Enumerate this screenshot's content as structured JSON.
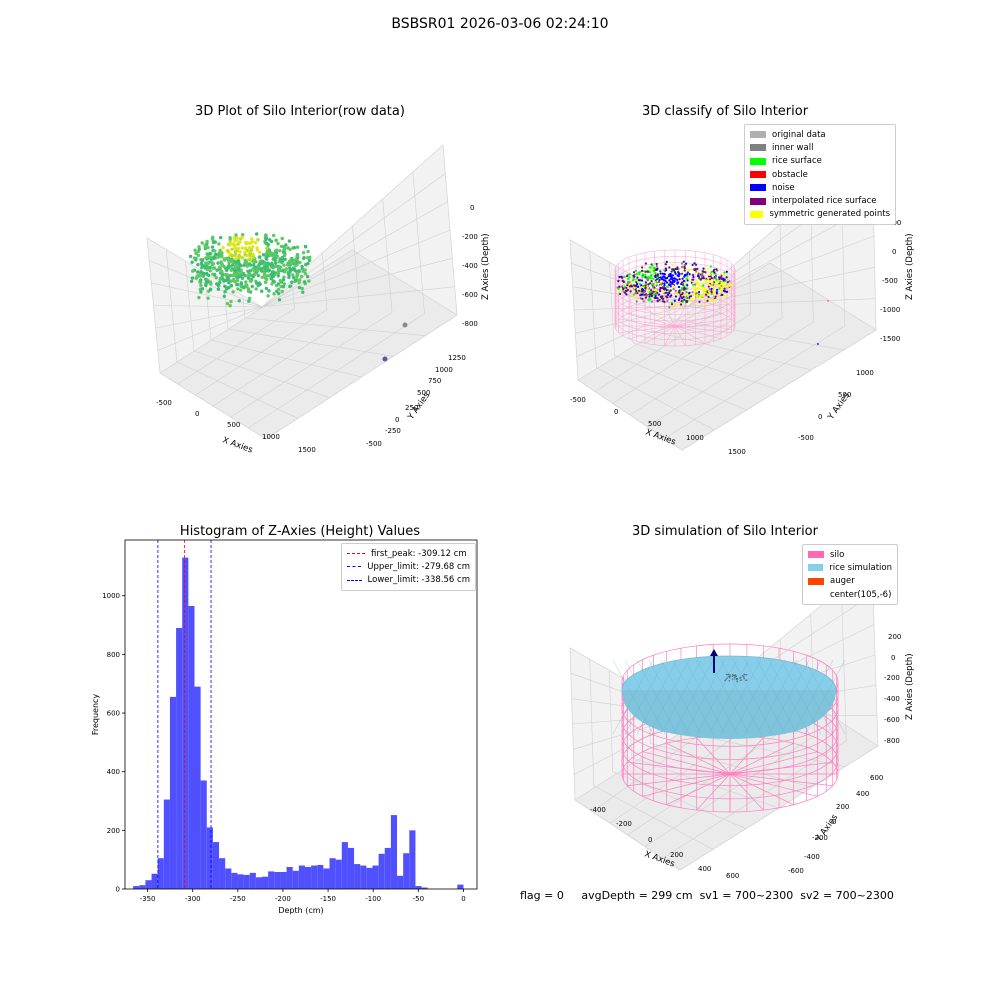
{
  "suptitle": "BSBSR01 2026-03-06 02:24:10",
  "panels": {
    "raw": {
      "title": "3D Plot of Silo Interior(row data)",
      "x_axis_label": "X Axies",
      "y_axis_label": "Y Axies",
      "z_axis_label": "Z Axies (Depth)",
      "x_ticks": [
        "-500",
        "0",
        "500",
        "1000",
        "1500"
      ],
      "y_ticks": [
        "-500",
        "-250",
        "0",
        "250",
        "500",
        "750",
        "1000",
        "1250"
      ],
      "z_ticks": [
        "0",
        "-200",
        "-400",
        "-600",
        "-800"
      ]
    },
    "classify": {
      "title": "3D classify of Silo Interior",
      "x_axis_label": "X Axies",
      "y_axis_label": "Y Axies",
      "z_axis_label": "Z Axies (Depth)",
      "x_ticks": [
        "-500",
        "0",
        "500",
        "1000",
        "1500"
      ],
      "y_ticks": [
        "-500",
        "0",
        "500",
        "1000"
      ],
      "z_ticks": [
        "500",
        "0",
        "-500",
        "-1000",
        "-1500"
      ],
      "legend": [
        {
          "label": "original data",
          "color": "#b0b0b0"
        },
        {
          "label": "inner wall",
          "color": "#808080"
        },
        {
          "label": "rice surface",
          "color": "#00ff00"
        },
        {
          "label": "obstacle",
          "color": "#ff0000"
        },
        {
          "label": "noise",
          "color": "#0000ff"
        },
        {
          "label": "interpolated rice surface",
          "color": "#800080"
        },
        {
          "label": "symmetric generated points",
          "color": "#ffff00"
        }
      ]
    },
    "simulation": {
      "title": "3D simulation of Silo Interior",
      "x_axis_label": "X Axies",
      "y_axis_label": "Y Axies",
      "z_axis_label": "Z Axies (Depth)",
      "x_ticks": [
        "-400",
        "-200",
        "0",
        "200",
        "400",
        "600"
      ],
      "y_ticks": [
        "-600",
        "-400",
        "-200",
        "0",
        "200",
        "400",
        "600"
      ],
      "z_ticks": [
        "200",
        "0",
        "-200",
        "-400",
        "-600",
        "-800"
      ],
      "legend": [
        {
          "label": "silo",
          "color": "#ff69b4"
        },
        {
          "label": "rice simulation",
          "color": "#87ceeb"
        },
        {
          "label": "auger",
          "color": "#ff4500"
        },
        {
          "label": "center(105,-6)",
          "color": ""
        }
      ]
    }
  },
  "chart_data": {
    "type": "bar",
    "title": "Histogram of Z-Axies (Height) Values",
    "xlabel": "Depth (cm)",
    "ylabel": "Frequency",
    "xlim": [
      -375,
      15
    ],
    "ylim": [
      0,
      1190
    ],
    "x_ticks": [
      -350,
      -300,
      -250,
      -200,
      -150,
      -100,
      -50,
      0
    ],
    "y_ticks": [
      0,
      200,
      400,
      600,
      800,
      1000
    ],
    "bar_color": "#5050ff",
    "bin_width": 6.8,
    "bins": [
      {
        "x": -366.0,
        "y": 10
      },
      {
        "x": -359.2,
        "y": 13
      },
      {
        "x": -352.4,
        "y": 30
      },
      {
        "x": -345.6,
        "y": 52
      },
      {
        "x": -338.8,
        "y": 105
      },
      {
        "x": -332.0,
        "y": 305
      },
      {
        "x": -325.2,
        "y": 655
      },
      {
        "x": -318.4,
        "y": 890
      },
      {
        "x": -311.6,
        "y": 1130
      },
      {
        "x": -304.8,
        "y": 965
      },
      {
        "x": -298.0,
        "y": 690
      },
      {
        "x": -291.2,
        "y": 370
      },
      {
        "x": -284.4,
        "y": 210
      },
      {
        "x": -277.6,
        "y": 160
      },
      {
        "x": -270.8,
        "y": 105
      },
      {
        "x": -264.0,
        "y": 70
      },
      {
        "x": -257.2,
        "y": 55
      },
      {
        "x": -250.4,
        "y": 50
      },
      {
        "x": -243.6,
        "y": 48
      },
      {
        "x": -236.8,
        "y": 55
      },
      {
        "x": -230.0,
        "y": 40
      },
      {
        "x": -223.2,
        "y": 42
      },
      {
        "x": -216.4,
        "y": 60
      },
      {
        "x": -209.6,
        "y": 58
      },
      {
        "x": -202.8,
        "y": 58
      },
      {
        "x": -196.0,
        "y": 75
      },
      {
        "x": -189.2,
        "y": 62
      },
      {
        "x": -182.4,
        "y": 80
      },
      {
        "x": -175.6,
        "y": 75
      },
      {
        "x": -168.8,
        "y": 80
      },
      {
        "x": -162.0,
        "y": 82
      },
      {
        "x": -155.2,
        "y": 70
      },
      {
        "x": -148.4,
        "y": 105
      },
      {
        "x": -141.6,
        "y": 100
      },
      {
        "x": -134.8,
        "y": 160
      },
      {
        "x": -128.0,
        "y": 140
      },
      {
        "x": -121.2,
        "y": 85
      },
      {
        "x": -114.4,
        "y": 80
      },
      {
        "x": -107.6,
        "y": 72
      },
      {
        "x": -100.8,
        "y": 80
      },
      {
        "x": -94.0,
        "y": 120
      },
      {
        "x": -87.2,
        "y": 140
      },
      {
        "x": -80.4,
        "y": 252
      },
      {
        "x": -73.6,
        "y": 45
      },
      {
        "x": -66.8,
        "y": 122
      },
      {
        "x": -60.0,
        "y": 200
      },
      {
        "x": -53.2,
        "y": 10
      },
      {
        "x": -46.4,
        "y": 5
      },
      {
        "x": -6.8,
        "y": 15
      }
    ],
    "vlines": [
      {
        "label": "first_peak: -309.12 cm",
        "x": -309.12,
        "color": "#ff0000"
      },
      {
        "label": "Upper_limit: -279.68 cm",
        "x": -279.68,
        "color": "#0000ff"
      },
      {
        "label": "Lower_limit: -338.56 cm",
        "x": -338.56,
        "color": "#0000ff"
      }
    ],
    "legend_position": "upper-right"
  },
  "footer": {
    "flag": "flag = 0",
    "avg_depth": "avgDepth = 299 cm",
    "sv1": "sv1 = 700~2300",
    "sv2": "sv2 = 700~2300"
  }
}
